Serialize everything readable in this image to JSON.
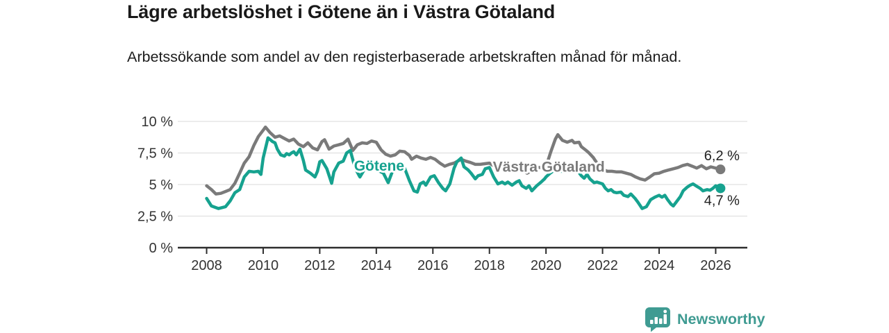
{
  "header": {
    "title": "Lägre arbetslöshet i Götene än i Västra Götaland",
    "subtitle": "Arbetssökande som andel av den registerbaserade arbetskraften månad för månad."
  },
  "footer": {
    "brand": "Newsworthy",
    "logo_icon": "bar-chart-speech-bubble-icon",
    "brand_color": "#3f9b92"
  },
  "colors": {
    "gotene_line": "#16a28f",
    "vastra_gotaland_line": "#7a7a7a",
    "grid": "#e0e0e0",
    "axis": "#2d2d2d",
    "tick_text": "#333333",
    "value_label_text": "#1f1f1f",
    "background": "#ffffff"
  },
  "chart_data": {
    "type": "line",
    "title": "Lägre arbetslöshet i Götene än i Västra Götaland",
    "subtitle": "Arbetssökande som andel av den registerbaserade arbetskraften månad för månad.",
    "grid": true,
    "legend_position": "inline-labels",
    "x_axis": {
      "ticks": [
        2008,
        2010,
        2012,
        2014,
        2016,
        2018,
        2020,
        2022,
        2024,
        2026
      ],
      "range": [
        2007.0,
        2027.1
      ]
    },
    "y_axis": {
      "unit": "%",
      "tick_values": [
        0,
        2.5,
        5,
        7.5,
        10
      ],
      "tick_labels": [
        "0 %",
        "2,5 %",
        "5 %",
        "7,5 %",
        "10 %"
      ],
      "range": [
        0,
        10
      ]
    },
    "annotations": [
      {
        "text": "Götene",
        "x": 2014.1,
        "y": 6.55,
        "color": "#16a28f"
      },
      {
        "text": "Västra Götaland",
        "x": 2020.1,
        "y": 6.45,
        "color": "#7a7a7a"
      }
    ],
    "series": [
      {
        "name": "Västra Götaland",
        "color": "#7a7a7a",
        "end_label": "6,2 %",
        "end_label_position": "above",
        "end_dot": true,
        "points": [
          [
            2008.0,
            4.9
          ],
          [
            2008.17,
            4.6
          ],
          [
            2008.33,
            4.25
          ],
          [
            2008.5,
            4.3
          ],
          [
            2008.67,
            4.45
          ],
          [
            2008.83,
            4.6
          ],
          [
            2009.0,
            5.1
          ],
          [
            2009.17,
            5.9
          ],
          [
            2009.33,
            6.7
          ],
          [
            2009.5,
            7.2
          ],
          [
            2009.67,
            8.1
          ],
          [
            2009.83,
            8.8
          ],
          [
            2010.0,
            9.3
          ],
          [
            2010.08,
            9.55
          ],
          [
            2010.25,
            9.1
          ],
          [
            2010.42,
            8.75
          ],
          [
            2010.58,
            8.85
          ],
          [
            2010.75,
            8.65
          ],
          [
            2010.92,
            8.45
          ],
          [
            2011.08,
            8.6
          ],
          [
            2011.25,
            8.2
          ],
          [
            2011.42,
            8.0
          ],
          [
            2011.58,
            8.3
          ],
          [
            2011.75,
            7.9
          ],
          [
            2011.92,
            7.75
          ],
          [
            2012.08,
            8.4
          ],
          [
            2012.17,
            8.55
          ],
          [
            2012.33,
            7.8
          ],
          [
            2012.5,
            8.05
          ],
          [
            2012.67,
            8.15
          ],
          [
            2012.83,
            8.25
          ],
          [
            2013.0,
            8.6
          ],
          [
            2013.17,
            7.7
          ],
          [
            2013.33,
            8.15
          ],
          [
            2013.5,
            8.3
          ],
          [
            2013.67,
            8.25
          ],
          [
            2013.83,
            8.45
          ],
          [
            2014.0,
            8.35
          ],
          [
            2014.17,
            7.75
          ],
          [
            2014.33,
            7.4
          ],
          [
            2014.5,
            7.25
          ],
          [
            2014.67,
            7.35
          ],
          [
            2014.83,
            7.65
          ],
          [
            2015.0,
            7.6
          ],
          [
            2015.17,
            7.3
          ],
          [
            2015.25,
            7.0
          ],
          [
            2015.42,
            7.25
          ],
          [
            2015.58,
            7.1
          ],
          [
            2015.75,
            7.0
          ],
          [
            2015.92,
            7.15
          ],
          [
            2016.08,
            7.0
          ],
          [
            2016.25,
            6.7
          ],
          [
            2016.42,
            6.45
          ],
          [
            2016.58,
            6.6
          ],
          [
            2016.75,
            6.7
          ],
          [
            2016.92,
            6.9
          ],
          [
            2017.0,
            7.0
          ],
          [
            2017.17,
            6.85
          ],
          [
            2017.33,
            6.75
          ],
          [
            2017.5,
            6.6
          ],
          [
            2017.67,
            6.6
          ],
          [
            2017.83,
            6.65
          ],
          [
            2018.0,
            6.7
          ],
          [
            2018.17,
            6.45
          ],
          [
            2018.33,
            6.35
          ],
          [
            2018.5,
            6.3
          ],
          [
            2018.67,
            6.1
          ],
          [
            2018.83,
            6.2
          ],
          [
            2019.0,
            6.25
          ],
          [
            2019.17,
            6.1
          ],
          [
            2019.33,
            5.9
          ],
          [
            2019.5,
            6.1
          ],
          [
            2019.67,
            6.35
          ],
          [
            2019.83,
            6.35
          ],
          [
            2020.0,
            6.4
          ],
          [
            2020.17,
            7.6
          ],
          [
            2020.33,
            8.6
          ],
          [
            2020.42,
            8.95
          ],
          [
            2020.58,
            8.5
          ],
          [
            2020.75,
            8.35
          ],
          [
            2020.92,
            8.5
          ],
          [
            2021.0,
            8.3
          ],
          [
            2021.17,
            8.35
          ],
          [
            2021.25,
            8.0
          ],
          [
            2021.42,
            7.7
          ],
          [
            2021.5,
            7.55
          ],
          [
            2021.67,
            7.15
          ],
          [
            2021.83,
            6.6
          ],
          [
            2022.0,
            6.2
          ],
          [
            2022.17,
            6.05
          ],
          [
            2022.33,
            6.05
          ],
          [
            2022.5,
            6.0
          ],
          [
            2022.67,
            6.0
          ],
          [
            2022.83,
            5.9
          ],
          [
            2023.0,
            5.8
          ],
          [
            2023.17,
            5.6
          ],
          [
            2023.33,
            5.45
          ],
          [
            2023.5,
            5.35
          ],
          [
            2023.67,
            5.6
          ],
          [
            2023.83,
            5.85
          ],
          [
            2024.0,
            5.9
          ],
          [
            2024.17,
            6.05
          ],
          [
            2024.33,
            6.15
          ],
          [
            2024.5,
            6.25
          ],
          [
            2024.67,
            6.35
          ],
          [
            2024.83,
            6.5
          ],
          [
            2025.0,
            6.6
          ],
          [
            2025.17,
            6.45
          ],
          [
            2025.33,
            6.3
          ],
          [
            2025.5,
            6.5
          ],
          [
            2025.67,
            6.25
          ],
          [
            2025.83,
            6.4
          ],
          [
            2026.0,
            6.3
          ],
          [
            2026.17,
            6.2
          ]
        ]
      },
      {
        "name": "Götene",
        "color": "#16a28f",
        "end_label": "4,7 %",
        "end_label_position": "below",
        "end_dot": true,
        "points": [
          [
            2008.0,
            3.9
          ],
          [
            2008.17,
            3.3
          ],
          [
            2008.42,
            3.1
          ],
          [
            2008.67,
            3.25
          ],
          [
            2008.83,
            3.7
          ],
          [
            2009.0,
            4.35
          ],
          [
            2009.17,
            4.6
          ],
          [
            2009.33,
            5.6
          ],
          [
            2009.5,
            6.05
          ],
          [
            2009.67,
            6.0
          ],
          [
            2009.83,
            6.05
          ],
          [
            2009.92,
            5.8
          ],
          [
            2010.0,
            7.1
          ],
          [
            2010.17,
            8.7
          ],
          [
            2010.33,
            8.4
          ],
          [
            2010.42,
            8.3
          ],
          [
            2010.5,
            7.8
          ],
          [
            2010.62,
            7.35
          ],
          [
            2010.75,
            7.25
          ],
          [
            2010.83,
            7.45
          ],
          [
            2010.92,
            7.35
          ],
          [
            2011.0,
            7.5
          ],
          [
            2011.08,
            7.6
          ],
          [
            2011.17,
            7.35
          ],
          [
            2011.3,
            7.8
          ],
          [
            2011.42,
            6.9
          ],
          [
            2011.5,
            6.15
          ],
          [
            2011.67,
            5.9
          ],
          [
            2011.83,
            5.6
          ],
          [
            2011.92,
            6.05
          ],
          [
            2012.0,
            6.8
          ],
          [
            2012.08,
            6.9
          ],
          [
            2012.25,
            6.25
          ],
          [
            2012.42,
            5.1
          ],
          [
            2012.5,
            6.0
          ],
          [
            2012.67,
            6.7
          ],
          [
            2012.83,
            6.85
          ],
          [
            2012.95,
            7.5
          ],
          [
            2013.08,
            7.7
          ],
          [
            2013.25,
            6.3
          ],
          [
            2013.42,
            5.6
          ],
          [
            2013.58,
            6.2
          ],
          [
            2013.75,
            6.3
          ],
          [
            2013.92,
            6.25
          ],
          [
            2014.08,
            6.1
          ],
          [
            2014.25,
            5.9
          ],
          [
            2014.42,
            5.15
          ],
          [
            2014.58,
            6.1
          ],
          [
            2014.75,
            6.15
          ],
          [
            2014.92,
            6.35
          ],
          [
            2015.0,
            6.3
          ],
          [
            2015.17,
            5.3
          ],
          [
            2015.33,
            4.5
          ],
          [
            2015.45,
            4.4
          ],
          [
            2015.55,
            5.05
          ],
          [
            2015.67,
            5.2
          ],
          [
            2015.75,
            4.95
          ],
          [
            2015.92,
            5.6
          ],
          [
            2016.05,
            5.7
          ],
          [
            2016.2,
            5.15
          ],
          [
            2016.35,
            4.7
          ],
          [
            2016.45,
            4.5
          ],
          [
            2016.6,
            5.05
          ],
          [
            2016.75,
            6.3
          ],
          [
            2016.85,
            6.8
          ],
          [
            2017.0,
            7.1
          ],
          [
            2017.1,
            6.4
          ],
          [
            2017.25,
            6.15
          ],
          [
            2017.35,
            5.9
          ],
          [
            2017.5,
            5.45
          ],
          [
            2017.6,
            5.7
          ],
          [
            2017.75,
            5.8
          ],
          [
            2017.85,
            6.25
          ],
          [
            2018.0,
            6.35
          ],
          [
            2018.15,
            5.6
          ],
          [
            2018.3,
            5.05
          ],
          [
            2018.45,
            5.2
          ],
          [
            2018.55,
            5.05
          ],
          [
            2018.65,
            5.2
          ],
          [
            2018.8,
            4.95
          ],
          [
            2018.95,
            5.2
          ],
          [
            2019.05,
            5.3
          ],
          [
            2019.15,
            4.9
          ],
          [
            2019.3,
            4.7
          ],
          [
            2019.4,
            4.9
          ],
          [
            2019.5,
            4.5
          ],
          [
            2019.67,
            4.9
          ],
          [
            2019.83,
            5.2
          ],
          [
            2019.95,
            5.45
          ],
          [
            2020.0,
            5.6
          ],
          [
            2020.15,
            5.9
          ],
          [
            2020.3,
            6.15
          ],
          [
            2020.45,
            6.05
          ],
          [
            2020.6,
            6.05
          ],
          [
            2020.75,
            6.1
          ],
          [
            2020.9,
            6.1
          ],
          [
            2021.1,
            6.15
          ],
          [
            2021.25,
            5.7
          ],
          [
            2021.35,
            5.5
          ],
          [
            2021.45,
            5.8
          ],
          [
            2021.55,
            5.45
          ],
          [
            2021.7,
            5.15
          ],
          [
            2021.8,
            5.2
          ],
          [
            2022.0,
            5.05
          ],
          [
            2022.1,
            4.7
          ],
          [
            2022.2,
            4.5
          ],
          [
            2022.3,
            4.6
          ],
          [
            2022.4,
            4.4
          ],
          [
            2022.5,
            4.35
          ],
          [
            2022.65,
            4.4
          ],
          [
            2022.75,
            4.15
          ],
          [
            2022.9,
            4.05
          ],
          [
            2023.0,
            4.25
          ],
          [
            2023.15,
            3.9
          ],
          [
            2023.25,
            3.6
          ],
          [
            2023.4,
            3.1
          ],
          [
            2023.55,
            3.25
          ],
          [
            2023.7,
            3.8
          ],
          [
            2023.85,
            4.0
          ],
          [
            2024.0,
            4.15
          ],
          [
            2024.1,
            4.0
          ],
          [
            2024.2,
            4.15
          ],
          [
            2024.3,
            3.8
          ],
          [
            2024.42,
            3.45
          ],
          [
            2024.5,
            3.3
          ],
          [
            2024.6,
            3.6
          ],
          [
            2024.75,
            4.05
          ],
          [
            2024.85,
            4.5
          ],
          [
            2025.0,
            4.8
          ],
          [
            2025.1,
            4.95
          ],
          [
            2025.2,
            5.05
          ],
          [
            2025.3,
            4.9
          ],
          [
            2025.45,
            4.7
          ],
          [
            2025.55,
            4.5
          ],
          [
            2025.7,
            4.6
          ],
          [
            2025.8,
            4.55
          ],
          [
            2025.9,
            4.7
          ],
          [
            2026.0,
            4.9
          ],
          [
            2026.1,
            4.8
          ],
          [
            2026.17,
            4.7
          ]
        ]
      }
    ]
  }
}
